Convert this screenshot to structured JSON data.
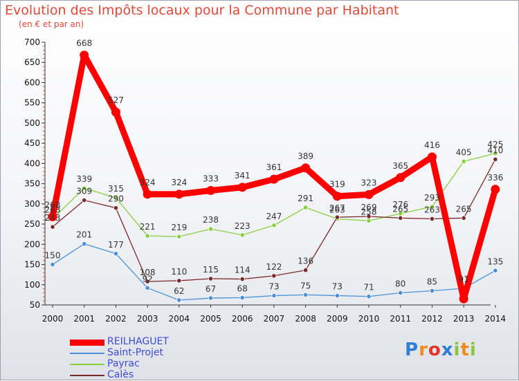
{
  "header": {
    "title": "Evolution des Impôts locaux pour la Commune par Habitant",
    "subtitle": "(en € et par an)"
  },
  "logo": {
    "text": "Proxiti",
    "letters": [
      "P",
      "r",
      "o",
      "x",
      "i",
      "t",
      "i"
    ],
    "colors": [
      "#2f7fd6",
      "#f08a1c",
      "#e6332a",
      "#2f7fd6",
      "#8cc43c",
      "#f08a1c",
      "#8cc43c"
    ]
  },
  "chart_data": {
    "type": "line",
    "x": [
      "2000",
      "2001",
      "2002",
      "2003",
      "2004",
      "2005",
      "2006",
      "2007",
      "2008",
      "2009",
      "2010",
      "2011",
      "2012",
      "2013",
      "2014"
    ],
    "yticks": [
      "50",
      "100",
      "150",
      "200",
      "250",
      "300",
      "350",
      "400",
      "450",
      "500",
      "550",
      "600",
      "650",
      "700"
    ],
    "ylim": [
      50,
      700
    ],
    "grid": false,
    "legend_position": "bottom-left",
    "series": [
      {
        "name": "REILHAGUET",
        "color": "#ff0000",
        "values": [
          268,
          668,
          527,
          324,
          324,
          333,
          341,
          361,
          389,
          319,
          323,
          365,
          416,
          65,
          336
        ],
        "labels": [
          "268",
          "668",
          "527",
          "324",
          "324",
          "333",
          "341",
          "361",
          "389",
          "319",
          "323",
          "365",
          "416",
          "",
          "336"
        ]
      },
      {
        "name": "Saint-Projet",
        "color": "#4a90d9",
        "values": [
          150,
          201,
          177,
          92,
          62,
          67,
          68,
          73,
          75,
          73,
          71,
          80,
          85,
          91,
          135
        ],
        "labels": [
          "150",
          "201",
          "177",
          "92",
          "62",
          "67",
          "68",
          "73",
          "75",
          "73",
          "71",
          "80",
          "85",
          "91",
          "135"
        ]
      },
      {
        "name": "Payrac",
        "color": "#88d040",
        "values": [
          263,
          339,
          315,
          221,
          219,
          238,
          223,
          247,
          291,
          263,
          258,
          276,
          293,
          405,
          425
        ],
        "labels": [
          "263",
          "339",
          "315",
          "221",
          "219",
          "238",
          "223",
          "247",
          "291",
          "263",
          "258",
          "276",
          "293",
          "405",
          "425"
        ]
      },
      {
        "name": "Calès",
        "color": "#7a2a2a",
        "values": [
          243,
          309,
          290,
          108,
          110,
          115,
          114,
          122,
          136,
          267,
          269,
          265,
          263,
          265,
          410
        ],
        "labels": [
          "243",
          "309",
          "290",
          "108",
          "110",
          "115",
          "114",
          "122",
          "136",
          "267",
          "269",
          "265",
          "263",
          "265",
          "410"
        ]
      }
    ]
  }
}
